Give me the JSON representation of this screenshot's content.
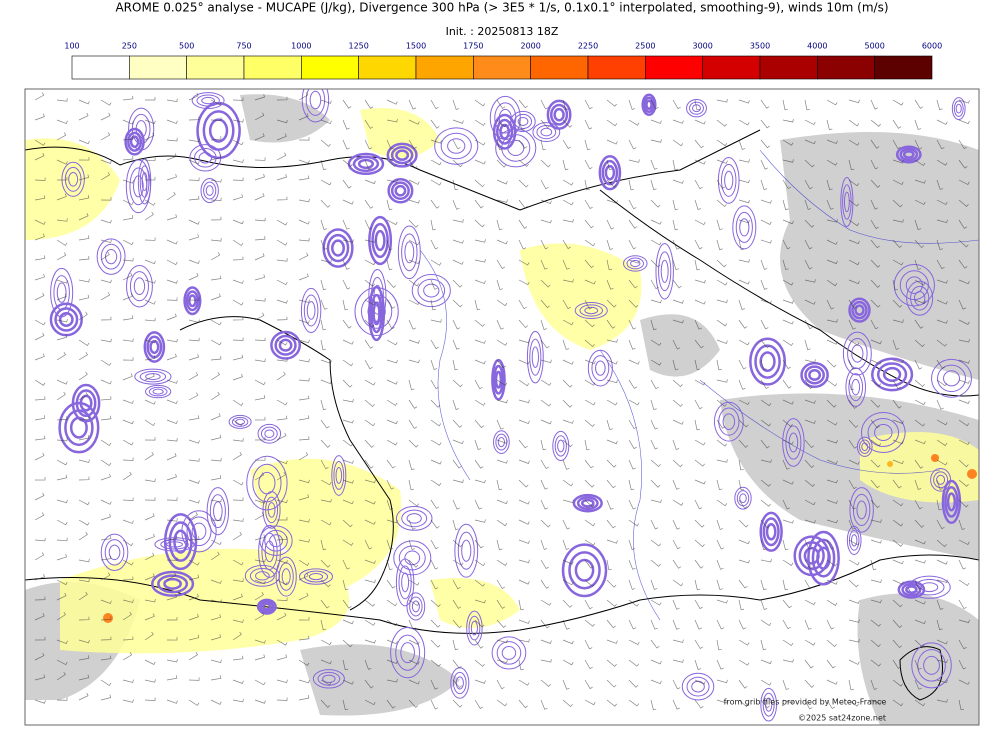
{
  "header": {
    "title": "AROME 0.025° analyse - MUCAPE (J/kg), Divergence 300 hPa (> 3E5 * 1/s, 0.1x0.1° interpolated, smoothing-9), winds 10m (m/s)",
    "init": "Init. : 20250813 18Z"
  },
  "colorbar": {
    "ticks": [
      100,
      250,
      500,
      750,
      1000,
      1250,
      1500,
      1750,
      2000,
      2250,
      2500,
      3000,
      3500,
      4000,
      5000,
      6000
    ],
    "colors": [
      "#ffffff",
      "#ffffc4",
      "#ffff99",
      "#ffff66",
      "#ffff00",
      "#ffd700",
      "#ffa500",
      "#ff8c1a",
      "#ff6600",
      "#ff4000",
      "#ff0000",
      "#d40000",
      "#aa0000",
      "#8b0000",
      "#5c0000"
    ]
  },
  "credits": [
    "from grib files provided by Meteo-France",
    "©2025 sat24zone.net"
  ]
}
